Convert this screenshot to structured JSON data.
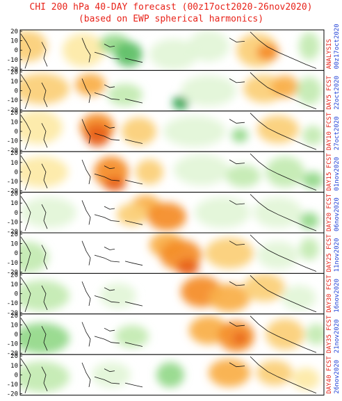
{
  "title": "CHI 200 hPa 40-DAY forecast (00z17oct2020-26nov2020)",
  "subtitle": "(based on EWP spherical harmonics)",
  "y_tick_labels": [
    "20",
    "10",
    "0",
    "-10",
    "-20"
  ],
  "colors": {
    "title": "#e8231a",
    "label_stage": "#e8231a",
    "label_date": "#1f3fd6",
    "positive": [
      "#fdeaa8",
      "#fbd07a",
      "#f9b04c",
      "#f48e2a",
      "#e8631b"
    ],
    "negative": [
      "#e3f5d8",
      "#c4ebb3",
      "#96d98b",
      "#5fc067",
      "#2ea44f"
    ]
  },
  "panels": [
    {
      "stage": "ANALYSIS",
      "date": "00z17oct2020"
    },
    {
      "stage": "DAY5 FCST",
      "date": "22oct2020"
    },
    {
      "stage": "DAY10 FCST",
      "date": "27oct2020"
    },
    {
      "stage": "DAY15 FCST",
      "date": "01nov2020"
    },
    {
      "stage": "DAY20 FCST",
      "date": "06nov2020"
    },
    {
      "stage": "DAY25 FCST",
      "date": "11nov2020"
    },
    {
      "stage": "DAY30 FCST",
      "date": "16nov2020"
    },
    {
      "stage": "DAY35 FCST",
      "date": "21nov2020"
    },
    {
      "stage": "DAY40 FCST",
      "date": "26nov2020"
    }
  ]
}
